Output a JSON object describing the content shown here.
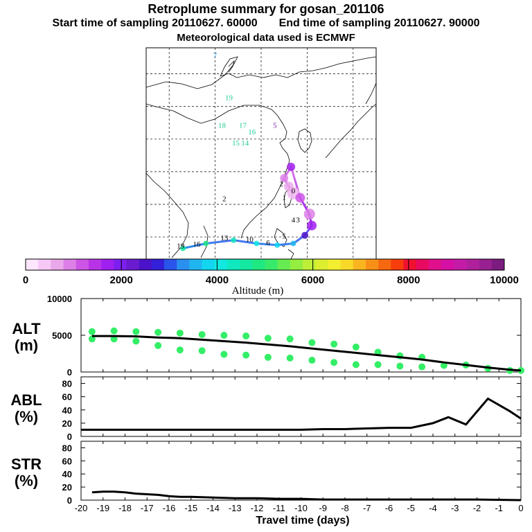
{
  "header": {
    "title": "Retroplume summary for gosan_201106",
    "start_sampling": "Start time of sampling 20110627. 60000",
    "end_sampling": "End time of sampling 20110627. 90000",
    "met_data": "Meteorological data used is ECMWF"
  },
  "map": {
    "day_labels": [
      {
        "text": "0",
        "lon": 127.0,
        "lat": 33.4,
        "color": "#000000"
      },
      {
        "text": "1",
        "lon": 125.0,
        "lat": 31.3,
        "color": "#000000"
      },
      {
        "text": "2",
        "lon": 124.4,
        "lat": 35.5,
        "color": "#000000"
      },
      {
        "text": "3",
        "lon": 128.0,
        "lat": 24.5,
        "color": "#000000"
      },
      {
        "text": "4",
        "lon": 127.0,
        "lat": 24.5,
        "color": "#000000"
      },
      {
        "text": "5",
        "lon": 125.0,
        "lat": 19.5,
        "color": "#000000"
      },
      {
        "text": "6",
        "lon": 121.5,
        "lat": 17.5,
        "color": "#000000"
      },
      {
        "text": "10",
        "lon": 117.5,
        "lat": 18.5,
        "color": "#000000"
      },
      {
        "text": "13",
        "lon": 112.0,
        "lat": 19.0,
        "color": "#000000"
      },
      {
        "text": "16",
        "lon": 106.0,
        "lat": 17.0,
        "color": "#000000"
      },
      {
        "text": "19",
        "lon": 102.5,
        "lat": 16.5,
        "color": "#000000"
      },
      {
        "text": "2",
        "lon": 112.0,
        "lat": 31.0,
        "color": "#000000"
      },
      {
        "text": "7",
        "lon": 110.0,
        "lat": 75.0,
        "color": "#2a9df4"
      },
      {
        "text": "19",
        "lon": 113.0,
        "lat": 62.0,
        "color": "#20c997"
      },
      {
        "text": "18",
        "lon": 111.5,
        "lat": 53.5,
        "color": "#20c997"
      },
      {
        "text": "17",
        "lon": 116.0,
        "lat": 53.5,
        "color": "#20c997"
      },
      {
        "text": "16",
        "lon": 118.0,
        "lat": 51.5,
        "color": "#20c997"
      },
      {
        "text": "15",
        "lon": 114.5,
        "lat": 48.0,
        "color": "#20c997"
      },
      {
        "text": "14",
        "lon": 116.5,
        "lat": 48.0,
        "color": "#20c997"
      },
      {
        "text": "5",
        "lon": 123.0,
        "lat": 53.5,
        "color": "#7a1fa2"
      }
    ],
    "trajectory": [
      [
        127.0,
        33.4
      ],
      [
        126.0,
        35.5
      ],
      [
        125.0,
        38.0
      ],
      [
        126.5,
        41.5
      ],
      [
        128.5,
        32.0
      ],
      [
        130.5,
        27.0
      ],
      [
        131.0,
        23.5
      ],
      [
        129.5,
        20.5
      ],
      [
        127.0,
        18.0
      ],
      [
        123.5,
        17.5
      ],
      [
        119.0,
        18.0
      ],
      [
        114.0,
        19.0
      ],
      [
        108.0,
        18.0
      ],
      [
        103.0,
        16.5
      ]
    ]
  },
  "colorbar": {
    "ticks": [
      "0",
      "2000",
      "4000",
      "6000",
      "8000",
      "10000"
    ],
    "label": "Altitude (m)",
    "colors": [
      "#ffe6ff",
      "#f6c8f6",
      "#eaa8ea",
      "#dd80e8",
      "#cc55e6",
      "#b833e6",
      "#a020ef",
      "#7c1ff0",
      "#6a1bd0",
      "#4b13c9",
      "#3320d8",
      "#2a55ea",
      "#2a90f0",
      "#20b5f0",
      "#12d6f0",
      "#10e8e0",
      "#10e8c0",
      "#14e8a0",
      "#20e880",
      "#38ea6a",
      "#66ec50",
      "#94ee40",
      "#bdee38",
      "#dcee30",
      "#f4ee30",
      "#f8d928",
      "#f8b520",
      "#f89018",
      "#f86810",
      "#f83c0c",
      "#f01030",
      "#e80a60",
      "#e0108c",
      "#d610a4",
      "#c41ca8",
      "#b0209c",
      "#982090",
      "#7c1c80"
    ]
  },
  "chart_data": [
    {
      "type": "line",
      "ylabel": "ALT",
      "yunit": "(m)",
      "ylim": [
        0,
        10000
      ],
      "yticks": [
        "0",
        "5000",
        "10000"
      ],
      "x": [
        -19.5,
        -18.5,
        -17.5,
        -16.5,
        -15.5,
        -14.5,
        -13.5,
        -12.5,
        -11.5,
        -10.5,
        -9.5,
        -8.5,
        -7.5,
        -6.5,
        -5.5,
        -4.5,
        -3.5,
        -2.5,
        -1.5,
        -0.5,
        0
      ],
      "series": [
        {
          "name": "mean altitude",
          "values": [
            4900,
            4900,
            4850,
            4700,
            4600,
            4400,
            4200,
            4000,
            3750,
            3500,
            3200,
            2900,
            2600,
            2300,
            2000,
            1700,
            1300,
            950,
            600,
            300,
            200
          ]
        }
      ],
      "scatter": {
        "x": [
          -19.5,
          -19.5,
          -18.5,
          -18.5,
          -17.5,
          -17.5,
          -16.5,
          -16.5,
          -15.5,
          -15.5,
          -14.5,
          -14.5,
          -13.5,
          -13.5,
          -12.5,
          -12.5,
          -11.5,
          -11.5,
          -10.5,
          -10.5,
          -9.5,
          -9.5,
          -8.5,
          -8.5,
          -7.5,
          -7.5,
          -6.5,
          -6.5,
          -5.5,
          -5.5,
          -4.5,
          -4.5,
          -3.5,
          -2.5,
          -1.5,
          -0.5,
          0
        ],
        "y": [
          5500,
          4500,
          5600,
          4500,
          5500,
          4200,
          5400,
          3600,
          5300,
          3000,
          5100,
          2900,
          5000,
          2400,
          4900,
          2300,
          4600,
          2000,
          4500,
          1900,
          4000,
          1600,
          3800,
          1300,
          3400,
          1000,
          2700,
          1000,
          2200,
          800,
          2000,
          700,
          900,
          950,
          500,
          200,
          200
        ]
      }
    },
    {
      "type": "line",
      "ylabel": "ABL",
      "yunit": "(%)",
      "ylim": [
        0,
        90
      ],
      "yticks": [
        "0",
        "20",
        "40",
        "60",
        "80"
      ],
      "x": [
        -20,
        -19,
        -18,
        -17,
        -16,
        -15,
        -14,
        -13,
        -12,
        -11,
        -10,
        -9,
        -8,
        -7,
        -6,
        -5,
        -4,
        -3.3,
        -2.5,
        -1.5,
        -0.5,
        0
      ],
      "series": [
        {
          "name": "ABL",
          "values": [
            10,
            10,
            10,
            10,
            10,
            10,
            10,
            10,
            10,
            10,
            10,
            11,
            11,
            12,
            13,
            13,
            20,
            29,
            18,
            57,
            38,
            27
          ]
        }
      ]
    },
    {
      "type": "line",
      "ylabel": "STR",
      "yunit": "(%)",
      "ylim": [
        0,
        90
      ],
      "yticks": [
        "0",
        "20",
        "40",
        "60",
        "80"
      ],
      "x": [
        -19.5,
        -19,
        -18.5,
        -18,
        -17.5,
        -17,
        -16.5,
        -16,
        -15.5,
        -15,
        -14,
        -13,
        -12,
        -11,
        -10,
        -9,
        -8,
        -6,
        -4,
        -2,
        0
      ],
      "series": [
        {
          "name": "STR",
          "values": [
            12,
            13,
            13,
            12,
            10,
            9,
            8,
            6,
            5,
            5,
            4,
            3,
            3,
            2,
            2,
            1,
            1,
            1,
            1,
            1,
            0
          ]
        }
      ],
      "xlabel": "Travel time (days)",
      "xticks": [
        "-20",
        "-19",
        "-18",
        "-17",
        "-16",
        "-15",
        "-14",
        "-13",
        "-12",
        "-11",
        "-10",
        "-9",
        "-8",
        "-7",
        "-6",
        "-5",
        "-4",
        "-3",
        "-2",
        "-1",
        "0"
      ]
    }
  ]
}
